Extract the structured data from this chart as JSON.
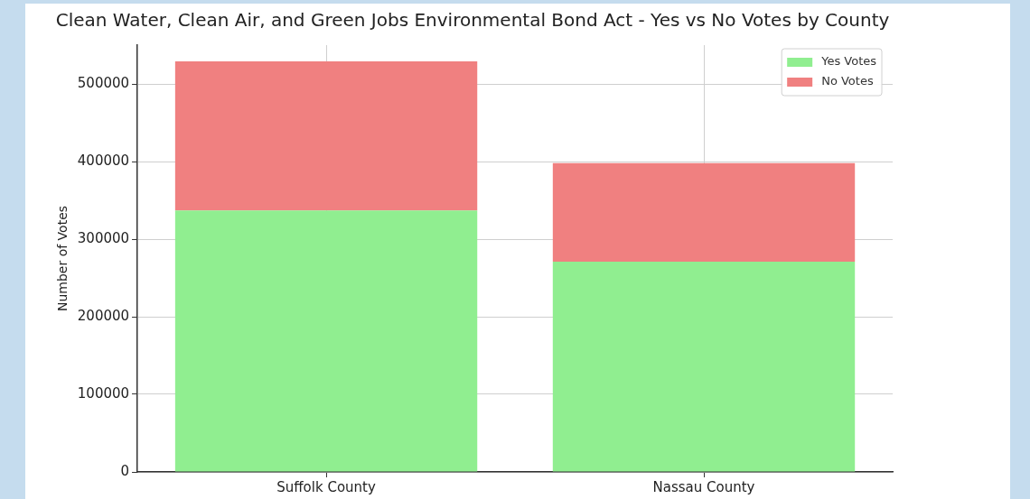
{
  "chart_data": {
    "type": "bar",
    "title": "Clean Water, Clean Air, and Green Jobs Environmental Bond Act - Yes vs No Votes by County",
    "ylabel": "Number of Votes",
    "categories": [
      "Suffolk County",
      "Nassau County"
    ],
    "stacked": true,
    "series": [
      {
        "name": "Yes Votes",
        "color": "#90ee90",
        "values": [
          337000,
          271000
        ]
      },
      {
        "name": "No Votes",
        "color": "#f08080",
        "values": [
          192000,
          127000
        ]
      }
    ],
    "ylim": [
      0,
      550000
    ],
    "yticks": [
      0,
      100000,
      200000,
      300000,
      400000,
      500000
    ],
    "grid": true,
    "legend": "top right"
  }
}
